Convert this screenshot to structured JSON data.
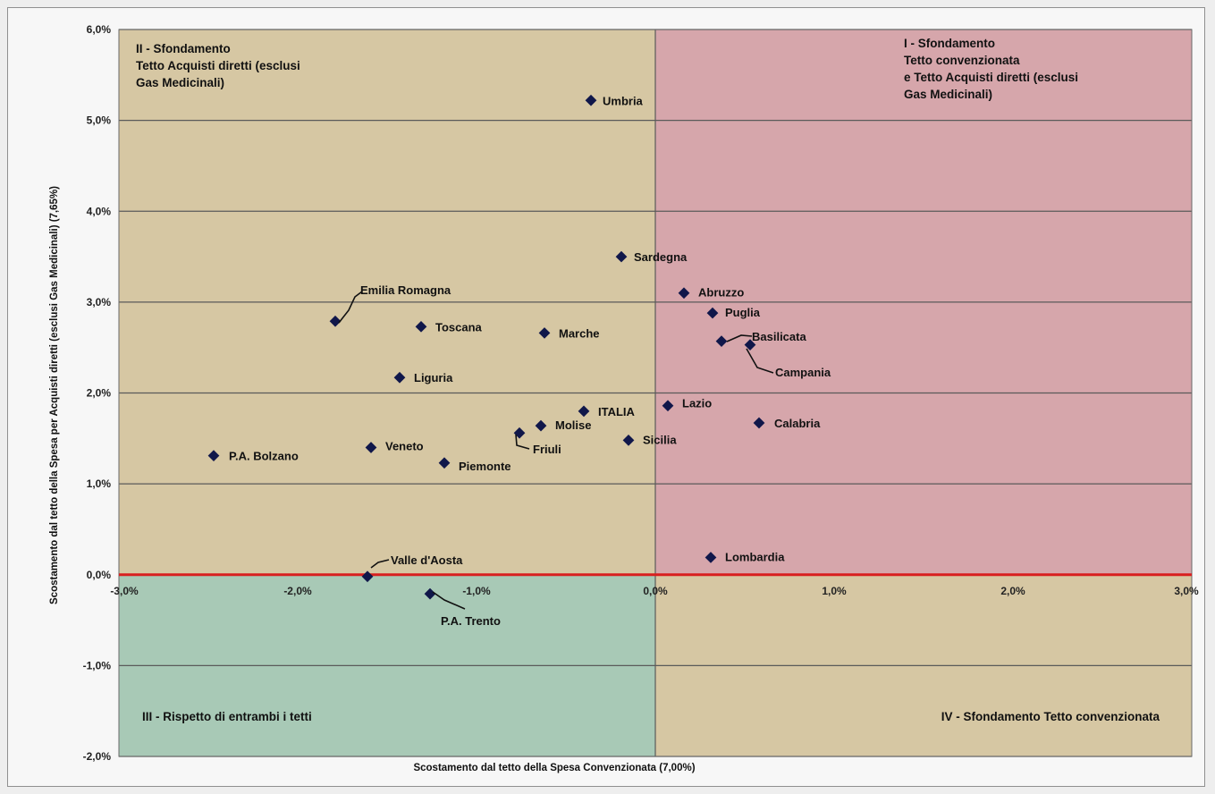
{
  "chart_data": {
    "type": "scatter",
    "xlabel": "Scostamento dal tetto della Spesa Convenzionata (7,00%)",
    "ylabel": "Scostamento dal tetto della Spesa per Acquisti diretti  (esclusi Gas Medicinali) (7,65%)",
    "xlim": [
      -3.0,
      3.0
    ],
    "ylim": [
      -2.0,
      6.0
    ],
    "x_ticks": [
      "-3,0%",
      "-2,0%",
      "-1,0%",
      "0,0%",
      "1,0%",
      "2,0%",
      "3,0%"
    ],
    "y_ticks": [
      "6,0%",
      "5,0%",
      "4,0%",
      "3,0%",
      "2,0%",
      "1,0%",
      "0,0%",
      "-1,0%",
      "-2,0%"
    ],
    "grid": "horizontal",
    "quadrants": [
      {
        "id": "q2",
        "lines": [
          "II - Sfondamento",
          "Tetto Acquisti diretti (esclusi",
          "Gas Medicinali)"
        ],
        "color": "#d6c7a3"
      },
      {
        "id": "q1",
        "lines": [
          "I - Sfondamento",
          "Tetto convenzionata",
          "e Tetto Acquisti diretti (esclusi",
          "Gas Medicinali)"
        ],
        "color": "#d6a6ab"
      },
      {
        "id": "q3",
        "lines": [
          "III - Rispetto di entrambi i tetti"
        ],
        "color": "#a8c9b6"
      },
      {
        "id": "q4",
        "lines": [
          "IV - Sfondamento Tetto convenzionata"
        ],
        "color": "#d6c7a3"
      }
    ],
    "points": [
      {
        "name": "Umbria",
        "x": -0.36,
        "y": 5.22
      },
      {
        "name": "Sardegna",
        "x": -0.19,
        "y": 3.5
      },
      {
        "name": "Abruzzo",
        "x": 0.16,
        "y": 3.1
      },
      {
        "name": "Puglia",
        "x": 0.32,
        "y": 2.88
      },
      {
        "name": "Basilicata",
        "x": 0.37,
        "y": 2.57
      },
      {
        "name": "Campania",
        "x": 0.53,
        "y": 2.53
      },
      {
        "name": "Emilia Romagna",
        "x": -1.79,
        "y": 2.79
      },
      {
        "name": "Toscana",
        "x": -1.31,
        "y": 2.73
      },
      {
        "name": "Marche",
        "x": -0.62,
        "y": 2.66
      },
      {
        "name": "Liguria",
        "x": -1.43,
        "y": 2.17
      },
      {
        "name": "Lazio",
        "x": 0.07,
        "y": 1.86
      },
      {
        "name": "ITALIA",
        "x": -0.4,
        "y": 1.8
      },
      {
        "name": "Calabria",
        "x": 0.58,
        "y": 1.67
      },
      {
        "name": "Molise",
        "x": -0.64,
        "y": 1.64
      },
      {
        "name": "Friuli",
        "x": -0.76,
        "y": 1.56
      },
      {
        "name": "Sicilia",
        "x": -0.15,
        "y": 1.48
      },
      {
        "name": "Veneto",
        "x": -1.59,
        "y": 1.4
      },
      {
        "name": "P.A. Bolzano",
        "x": -2.47,
        "y": 1.31
      },
      {
        "name": "Piemonte",
        "x": -1.18,
        "y": 1.23
      },
      {
        "name": "Lombardia",
        "x": 0.31,
        "y": 0.19
      },
      {
        "name": "Valle d'Aosta",
        "x": -1.61,
        "y": -0.02
      },
      {
        "name": "P.A. Trento",
        "x": -1.26,
        "y": -0.21
      }
    ],
    "marker_color": "#10174a",
    "zero_line_color": "#d81f1f"
  }
}
